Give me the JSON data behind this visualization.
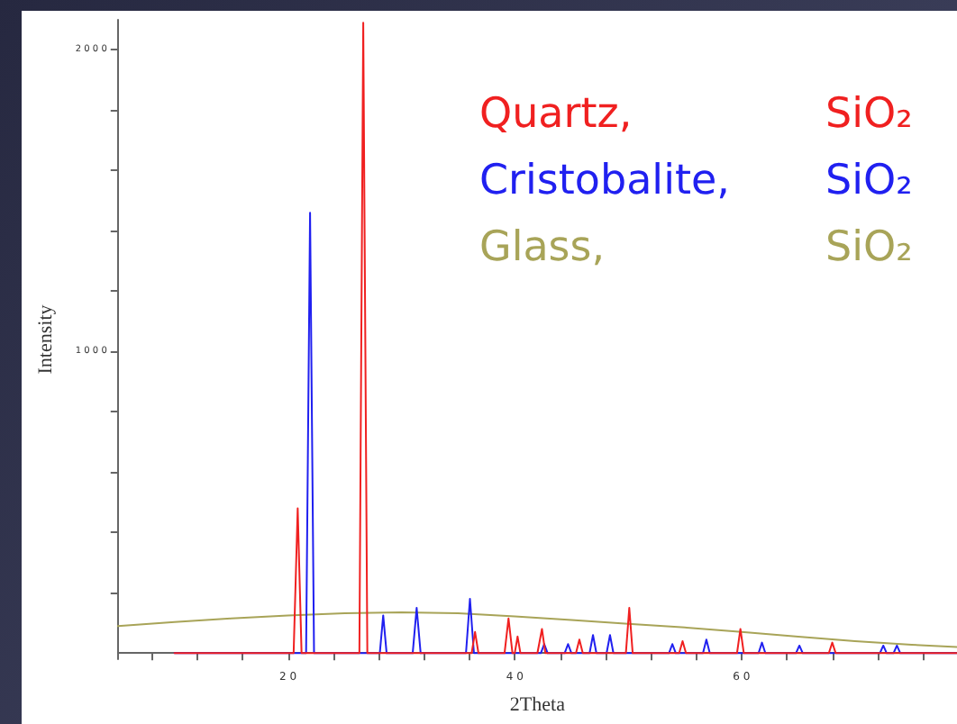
{
  "chart_data": {
    "type": "line",
    "xlabel": "2Theta",
    "ylabel": "Intensity",
    "xlim": [
      5,
      79
    ],
    "ylim": [
      -20,
      2100
    ],
    "xticks": [
      {
        "value": 8,
        "label": null
      },
      {
        "value": 12,
        "label": null
      },
      {
        "value": 16,
        "label": null
      },
      20,
      {
        "value": 24,
        "label": null
      },
      {
        "value": 28,
        "label": null
      },
      {
        "value": 32,
        "label": null
      },
      {
        "value": 36,
        "label": null
      },
      40,
      {
        "value": 44,
        "label": null
      },
      {
        "value": 48,
        "label": null
      },
      {
        "value": 52,
        "label": null
      },
      {
        "value": 56,
        "label": null
      },
      60,
      {
        "value": 64,
        "label": null
      },
      {
        "value": 68,
        "label": null
      },
      {
        "value": 72,
        "label": null
      },
      {
        "value": 76,
        "label": null
      }
    ],
    "yticks": [
      {
        "value": 200,
        "label": null
      },
      {
        "value": 400,
        "label": null
      },
      {
        "value": 600,
        "label": null
      },
      {
        "value": 800,
        "label": null
      },
      1000,
      {
        "value": 1200,
        "label": null
      },
      {
        "value": 1400,
        "label": null
      },
      {
        "value": 1600,
        "label": null
      },
      {
        "value": 1800,
        "label": null
      },
      2000
    ],
    "grid": false,
    "legend": false,
    "marker": "none",
    "line_style": "solid",
    "series": [
      {
        "name": "Quartz, SiO₂",
        "color": "#f02020",
        "x": [
          10,
          20.5,
          20.86,
          21.2,
          26.3,
          26.64,
          27.0,
          36.2,
          36.5,
          36.8,
          39.1,
          39.45,
          39.8,
          40.0,
          40.25,
          40.5,
          42.0,
          42.4,
          42.7,
          45.4,
          45.7,
          46.0,
          49.8,
          50.1,
          50.4,
          54.5,
          54.8,
          55.1,
          59.6,
          59.9,
          60.2,
          67.7,
          68.0,
          68.3,
          79
        ],
        "values": [
          0,
          0,
          480,
          0,
          0,
          2090,
          0,
          0,
          70,
          0,
          0,
          115,
          0,
          0,
          55,
          0,
          0,
          80,
          0,
          0,
          45,
          0,
          0,
          150,
          0,
          0,
          40,
          0,
          0,
          80,
          0,
          0,
          35,
          0,
          0
        ]
      },
      {
        "name": "Cristobalite, SiO₂",
        "color": "#2020f0",
        "x": [
          10,
          21.6,
          21.95,
          22.3,
          28.1,
          28.4,
          28.7,
          31.0,
          31.35,
          31.7,
          35.7,
          36.05,
          36.4,
          42.3,
          42.6,
          42.9,
          44.4,
          44.7,
          45.0,
          46.6,
          46.9,
          47.2,
          48.1,
          48.4,
          48.7,
          53.6,
          53.9,
          54.2,
          56.6,
          56.9,
          57.2,
          61.5,
          61.8,
          62.1,
          64.8,
          65.1,
          65.4,
          72.2,
          72.5,
          72.8,
          73.4,
          73.7,
          74.0,
          79
        ],
        "values": [
          0,
          0,
          1460,
          0,
          0,
          125,
          0,
          0,
          150,
          0,
          0,
          180,
          0,
          0,
          30,
          0,
          0,
          30,
          0,
          0,
          60,
          0,
          0,
          60,
          0,
          0,
          30,
          0,
          0,
          45,
          0,
          0,
          35,
          0,
          0,
          25,
          0,
          0,
          25,
          0,
          0,
          25,
          0,
          0
        ]
      },
      {
        "name": "Glass, SiO₂",
        "color": "#a8a458",
        "x": [
          5,
          10,
          15,
          20,
          25,
          30,
          35,
          40,
          45,
          50,
          55,
          60,
          65,
          70,
          75,
          79
        ],
        "values": [
          90,
          103,
          115,
          125,
          132,
          135,
          132,
          122,
          110,
          97,
          85,
          70,
          55,
          40,
          28,
          20
        ]
      }
    ]
  }
}
